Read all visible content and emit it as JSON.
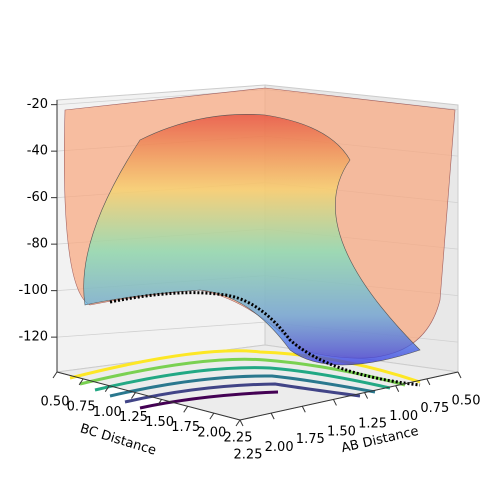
{
  "chart_data": {
    "type": "surface3d",
    "xlabel": "AB Distance",
    "ylabel": "BC Distance",
    "xlim": [
      0.5,
      2.25
    ],
    "ylim": [
      0.5,
      2.25
    ],
    "zlim": [
      -135,
      -18
    ],
    "xticks": [
      {
        "value": 0.5,
        "label": "0.50"
      },
      {
        "value": 0.75,
        "label": "0.75"
      },
      {
        "value": 1.0,
        "label": "1.00"
      },
      {
        "value": 1.25,
        "label": "1.25"
      },
      {
        "value": 1.5,
        "label": "1.50"
      },
      {
        "value": 1.75,
        "label": "1.75"
      },
      {
        "value": 2.0,
        "label": "2.00"
      },
      {
        "value": 2.25,
        "label": "2.25"
      }
    ],
    "yticks": [
      {
        "value": 0.5,
        "label": "0.50"
      },
      {
        "value": 0.75,
        "label": "0.75"
      },
      {
        "value": 1.0,
        "label": "1.00"
      },
      {
        "value": 1.25,
        "label": "1.25"
      },
      {
        "value": 1.5,
        "label": "1.50"
      },
      {
        "value": 1.75,
        "label": "1.75"
      },
      {
        "value": 2.0,
        "label": "2.00"
      },
      {
        "value": 2.25,
        "label": "2.25"
      }
    ],
    "zticks": [
      -20,
      -40,
      -60,
      -80,
      -100,
      -120
    ],
    "grid": true
  }
}
